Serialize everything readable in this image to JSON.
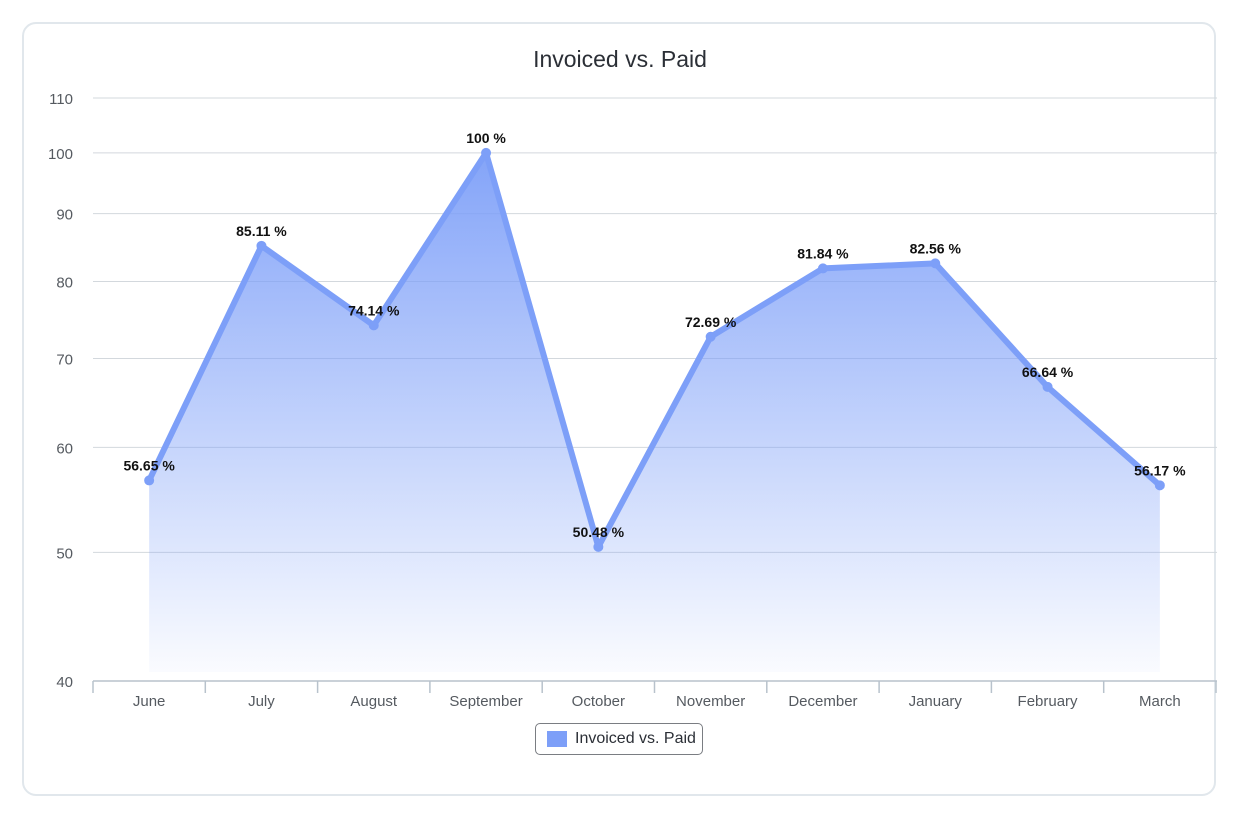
{
  "chart_data": {
    "type": "area",
    "title": "Invoiced vs. Paid",
    "categories": [
      "June",
      "July",
      "August",
      "September",
      "October",
      "November",
      "December",
      "January",
      "February",
      "March"
    ],
    "series": [
      {
        "name": "Invoiced vs. Paid",
        "values": [
          56.65,
          85.11,
          74.14,
          100,
          50.48,
          72.69,
          81.84,
          82.56,
          66.64,
          56.17
        ],
        "data_labels": [
          "56.65 %",
          "85.11 %",
          "74.14 %",
          "100 %",
          "50.48 %",
          "72.69 %",
          "81.84 %",
          "82.56 %",
          "66.64 %",
          "56.17 %"
        ],
        "color": "#7d9ff8"
      }
    ],
    "yticks": [
      40,
      50,
      60,
      70,
      80,
      90,
      100,
      110
    ],
    "ylim": [
      40,
      110
    ],
    "y_scale": "log",
    "grid": true,
    "legend": "bottom-center"
  },
  "colors": {
    "series": "#7d9ff8",
    "grid": "#d3d8dd",
    "axis": "#b8c2cc",
    "text": "#555a60"
  }
}
